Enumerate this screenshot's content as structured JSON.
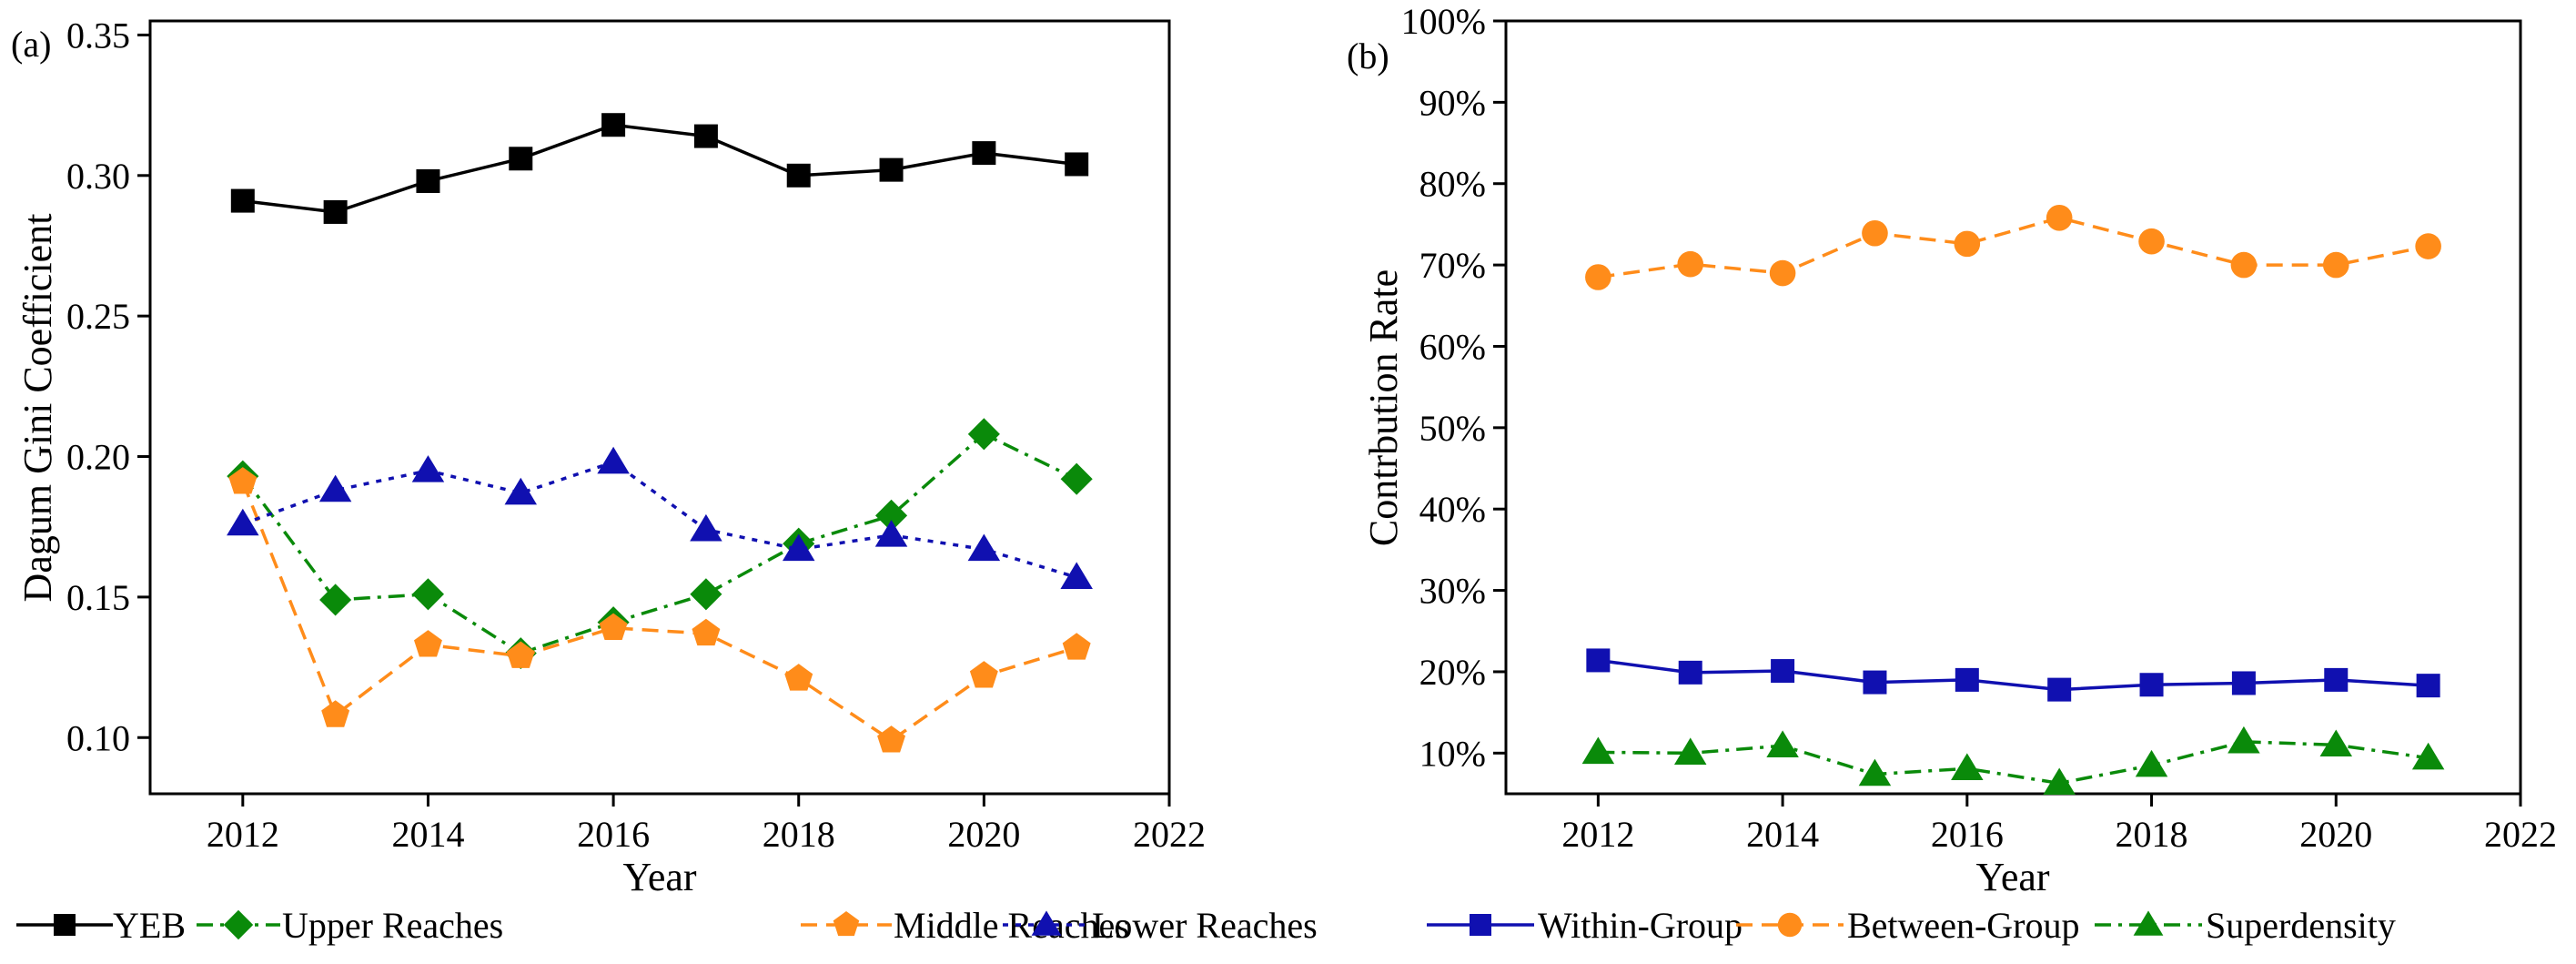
{
  "chart_data": [
    {
      "type": "line",
      "panel_label": "(a)",
      "xlabel": "Year",
      "ylabel": "Dagum Gini Coefficient",
      "xlim": [
        2011,
        2022
      ],
      "ylim": [
        0.08,
        0.355
      ],
      "x_ticks": [
        2012,
        2014,
        2016,
        2018,
        2020,
        2022
      ],
      "x_tick_labels": [
        "2012",
        "2014",
        "2016",
        "2018",
        "2020",
        "2022"
      ],
      "y_ticks": [
        0.1,
        0.15,
        0.2,
        0.25,
        0.3,
        0.35
      ],
      "y_tick_labels": [
        "0.10",
        "0.15",
        "0.20",
        "0.25",
        "0.30",
        "0.35"
      ],
      "x": [
        2012,
        2013,
        2014,
        2015,
        2016,
        2017,
        2018,
        2019,
        2020,
        2021
      ],
      "legend_position": "bottom",
      "series": [
        {
          "name": "YEB",
          "color": "#000000",
          "marker": "square",
          "dash": "solid",
          "values": [
            0.291,
            0.287,
            0.298,
            0.306,
            0.318,
            0.314,
            0.3,
            0.302,
            0.308,
            0.304
          ]
        },
        {
          "name": "Upper Reaches",
          "color": "#0a8a0a",
          "marker": "diamond",
          "dash": "dashdot",
          "values": [
            0.193,
            0.149,
            0.151,
            0.13,
            0.141,
            0.151,
            0.169,
            0.179,
            0.208,
            0.192
          ]
        },
        {
          "name": "Middle Reaches",
          "color": "#ff8c1a",
          "marker": "pentagon",
          "dash": "dash",
          "values": [
            0.191,
            0.108,
            0.133,
            0.129,
            0.139,
            0.137,
            0.121,
            0.099,
            0.122,
            0.132
          ]
        },
        {
          "name": "Lower Reaches",
          "color": "#1010b0",
          "marker": "triangle",
          "dash": "dot",
          "values": [
            0.176,
            0.188,
            0.195,
            0.187,
            0.198,
            0.174,
            0.167,
            0.172,
            0.167,
            0.157
          ]
        }
      ]
    },
    {
      "type": "line",
      "panel_label": "(b)",
      "xlabel": "Year",
      "ylabel": "Contrbution Rate",
      "xlim": [
        2011,
        2022
      ],
      "ylim": [
        5,
        100
      ],
      "x_ticks": [
        2012,
        2014,
        2016,
        2018,
        2020,
        2022
      ],
      "x_tick_labels": [
        "2012",
        "2014",
        "2016",
        "2018",
        "2020",
        "2022"
      ],
      "y_ticks": [
        10,
        20,
        30,
        40,
        50,
        60,
        70,
        80,
        90,
        100
      ],
      "y_tick_labels": [
        "10%",
        "20%",
        "30%",
        "40%",
        "50%",
        "60%",
        "70%",
        "80%",
        "90%",
        "100%"
      ],
      "x": [
        2012,
        2013,
        2014,
        2015,
        2016,
        2017,
        2018,
        2019,
        2020,
        2021
      ],
      "legend_position": "bottom",
      "series": [
        {
          "name": "Within-Group",
          "color": "#1010b0",
          "marker": "square",
          "dash": "solid",
          "values": [
            21.4,
            19.9,
            20.1,
            18.7,
            19.0,
            17.8,
            18.4,
            18.6,
            19.0,
            18.3
          ]
        },
        {
          "name": "Between-Group",
          "color": "#ff8c1a",
          "marker": "circle",
          "dash": "dash",
          "values": [
            68.5,
            70.1,
            69.0,
            73.9,
            72.6,
            75.8,
            72.9,
            70.0,
            70.0,
            72.3
          ]
        },
        {
          "name": "Superdensity",
          "color": "#0a8a0a",
          "marker": "triangle",
          "dash": "dashdot",
          "values": [
            10.1,
            10.0,
            10.9,
            7.4,
            8.1,
            6.3,
            8.5,
            11.4,
            11.0,
            9.4
          ]
        }
      ]
    }
  ]
}
